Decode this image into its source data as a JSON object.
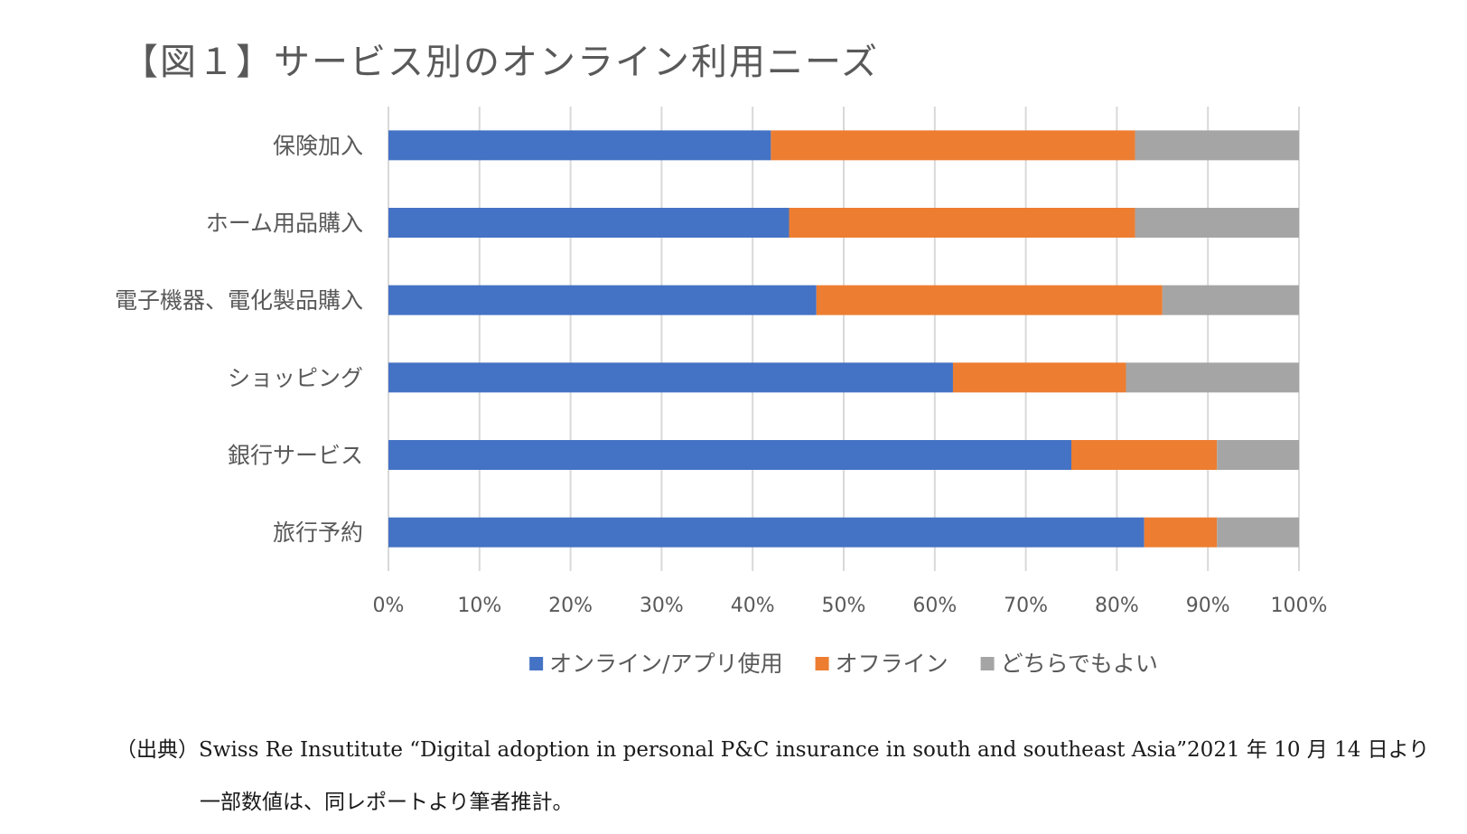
{
  "chart_data": {
    "type": "bar",
    "orientation": "horizontal",
    "stacked": "percent",
    "title": "【図１】サービス別のオンライン利用ニーズ",
    "categories": [
      "保険加入",
      "ホーム用品購入",
      "電子機器、電化製品購入",
      "ショッピング",
      "銀行サービス",
      "旅行予約"
    ],
    "series": [
      {
        "name": "オンライン/アプリ使用",
        "values": [
          42,
          44,
          47,
          62,
          75,
          83
        ]
      },
      {
        "name": "オフライン",
        "values": [
          40,
          38,
          38,
          19,
          16,
          8
        ]
      },
      {
        "name": "どちらでもよい",
        "values": [
          18,
          18,
          15,
          19,
          9,
          9
        ]
      }
    ],
    "xticks": [
      "0%",
      "10%",
      "20%",
      "30%",
      "40%",
      "50%",
      "60%",
      "70%",
      "80%",
      "90%",
      "100%"
    ],
    "xlim": [
      0,
      100
    ],
    "grid": true,
    "legend_position": "bottom",
    "colors": [
      "#4472C4",
      "#ED7D31",
      "#A5A5A5"
    ]
  },
  "source": {
    "line1": "（出典）Swiss Re Insutitute “Digital adoption in personal P&C insurance in south and southeast Asia”2021 年 10 月 14 日より",
    "line2": "一部数値は、同レポートより筆者推計。"
  }
}
